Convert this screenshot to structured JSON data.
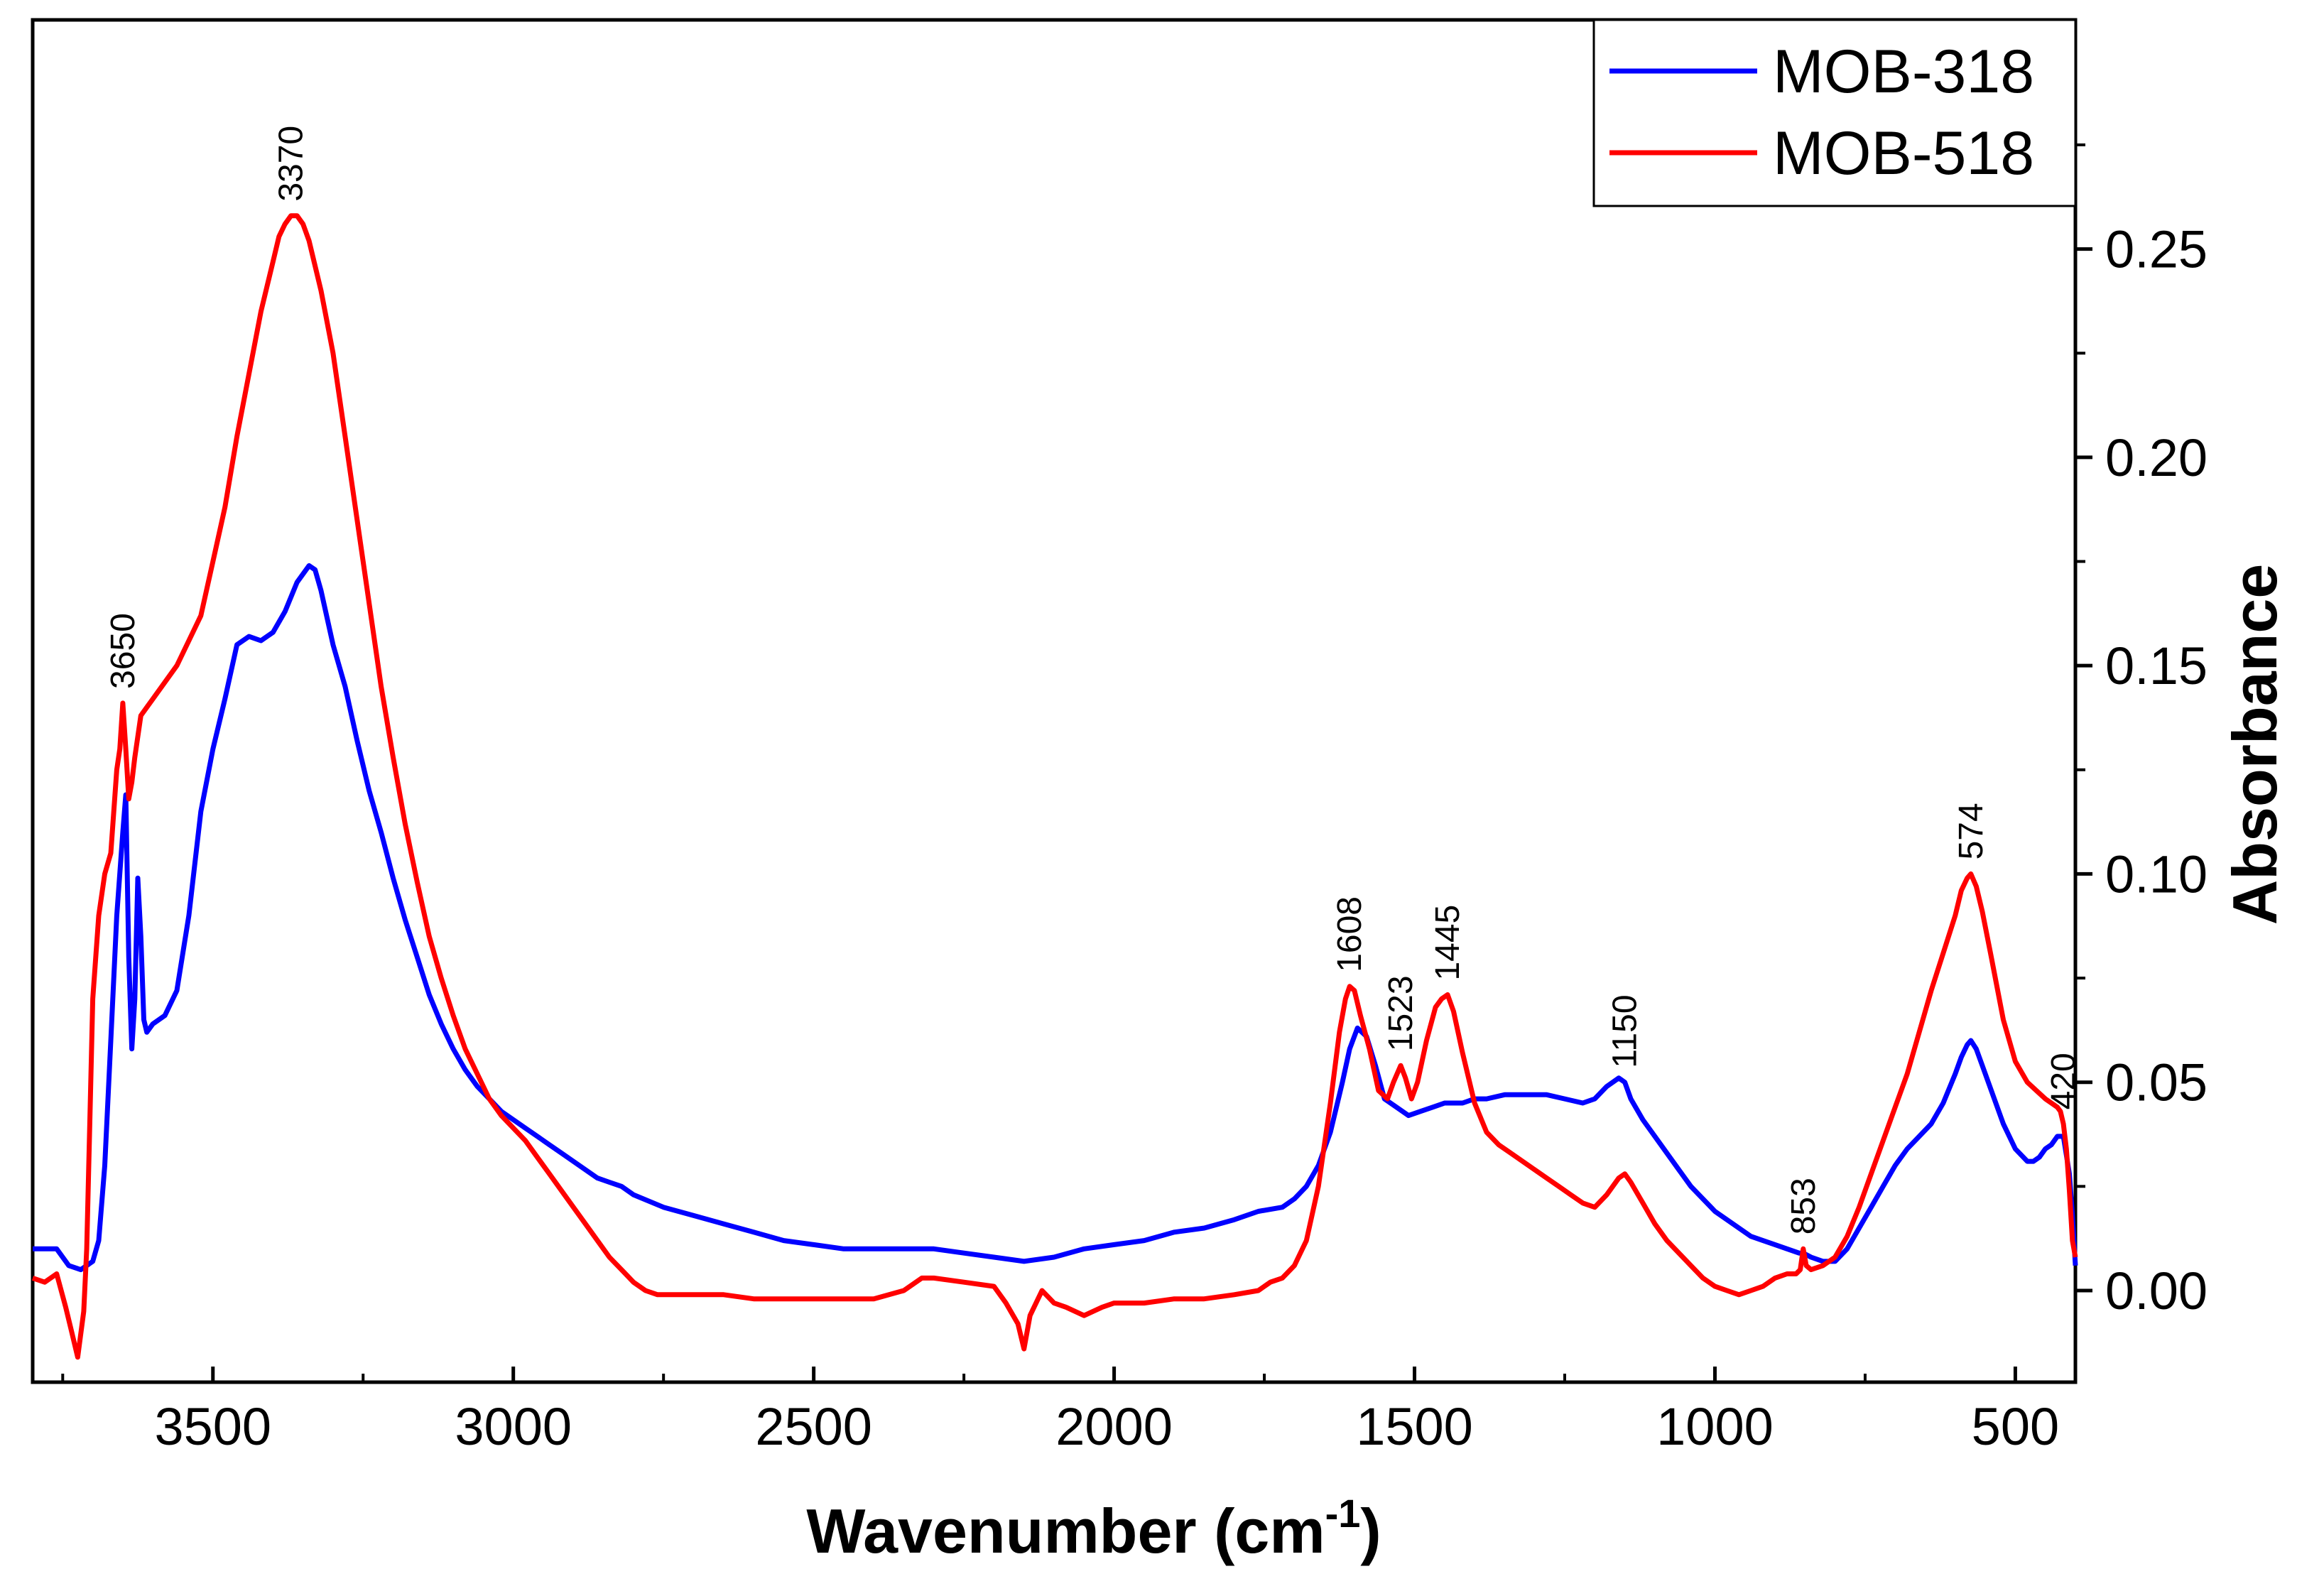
{
  "chart_data": {
    "type": "line",
    "title": "",
    "xlabel": "Wavenumber (cm",
    "xlabel_sup": "-1",
    "xlabel_suffix": ")",
    "ylabel": "Absorbance",
    "xlim": [
      3800,
      400
    ],
    "ylim": [
      -0.022,
      0.305
    ],
    "x_ticks": [
      3500,
      3000,
      2500,
      2000,
      1500,
      1000,
      500
    ],
    "x_tick_labels": [
      "3500",
      "3000",
      "2500",
      "2000",
      "1500",
      "1000",
      "500"
    ],
    "y_ticks": [
      0.0,
      0.05,
      0.1,
      0.15,
      0.2,
      0.25
    ],
    "y_tick_labels": [
      "0.00",
      "0.05",
      "0.10",
      "0.15",
      "0.20",
      "0.25"
    ],
    "y_axis_side": "right",
    "grid": false,
    "legend_position": "top-right",
    "series": [
      {
        "name": "MOB-318",
        "color": "#0000ff",
        "x": [
          3800,
          3760,
          3740,
          3720,
          3700,
          3690,
          3680,
          3670,
          3660,
          3650,
          3645,
          3640,
          3635,
          3630,
          3625,
          3620,
          3615,
          3610,
          3600,
          3580,
          3560,
          3540,
          3520,
          3500,
          3480,
          3460,
          3440,
          3420,
          3400,
          3380,
          3360,
          3340,
          3330,
          3320,
          3300,
          3280,
          3260,
          3240,
          3220,
          3200,
          3180,
          3160,
          3140,
          3120,
          3100,
          3080,
          3060,
          3040,
          3020,
          3000,
          2980,
          2960,
          2940,
          2920,
          2900,
          2880,
          2860,
          2840,
          2820,
          2800,
          2750,
          2700,
          2650,
          2600,
          2550,
          2500,
          2450,
          2400,
          2350,
          2300,
          2250,
          2200,
          2150,
          2100,
          2050,
          2000,
          1950,
          1900,
          1850,
          1800,
          1760,
          1720,
          1700,
          1680,
          1660,
          1640,
          1620,
          1608,
          1595,
          1580,
          1565,
          1550,
          1530,
          1510,
          1490,
          1470,
          1450,
          1420,
          1400,
          1380,
          1350,
          1320,
          1300,
          1280,
          1250,
          1220,
          1200,
          1180,
          1160,
          1150,
          1140,
          1120,
          1100,
          1080,
          1060,
          1040,
          1020,
          1000,
          980,
          960,
          940,
          920,
          900,
          880,
          860,
          853,
          840,
          820,
          800,
          780,
          760,
          740,
          720,
          700,
          680,
          660,
          640,
          620,
          600,
          590,
          580,
          574,
          565,
          555,
          540,
          520,
          500,
          480,
          470,
          460,
          450,
          440,
          430,
          420,
          410,
          405,
          400
        ],
        "y": [
          0.01,
          0.01,
          0.006,
          0.005,
          0.007,
          0.012,
          0.03,
          0.06,
          0.09,
          0.11,
          0.119,
          0.08,
          0.058,
          0.07,
          0.099,
          0.085,
          0.065,
          0.062,
          0.064,
          0.066,
          0.072,
          0.09,
          0.115,
          0.13,
          0.142,
          0.155,
          0.157,
          0.156,
          0.158,
          0.163,
          0.17,
          0.174,
          0.173,
          0.168,
          0.155,
          0.145,
          0.132,
          0.12,
          0.11,
          0.099,
          0.089,
          0.08,
          0.071,
          0.064,
          0.058,
          0.053,
          0.049,
          0.046,
          0.043,
          0.041,
          0.039,
          0.037,
          0.035,
          0.033,
          0.031,
          0.029,
          0.027,
          0.026,
          0.025,
          0.023,
          0.02,
          0.018,
          0.016,
          0.014,
          0.012,
          0.011,
          0.01,
          0.01,
          0.01,
          0.01,
          0.009,
          0.008,
          0.007,
          0.008,
          0.01,
          0.011,
          0.012,
          0.014,
          0.015,
          0.017,
          0.019,
          0.02,
          0.022,
          0.025,
          0.03,
          0.038,
          0.05,
          0.058,
          0.063,
          0.061,
          0.054,
          0.046,
          0.044,
          0.042,
          0.043,
          0.044,
          0.045,
          0.045,
          0.046,
          0.046,
          0.047,
          0.047,
          0.047,
          0.047,
          0.046,
          0.045,
          0.046,
          0.049,
          0.051,
          0.05,
          0.046,
          0.041,
          0.037,
          0.033,
          0.029,
          0.025,
          0.022,
          0.019,
          0.017,
          0.015,
          0.013,
          0.012,
          0.011,
          0.01,
          0.009,
          0.009,
          0.008,
          0.007,
          0.007,
          0.01,
          0.015,
          0.02,
          0.025,
          0.03,
          0.034,
          0.037,
          0.04,
          0.045,
          0.052,
          0.056,
          0.059,
          0.06,
          0.058,
          0.054,
          0.048,
          0.04,
          0.034,
          0.031,
          0.031,
          0.032,
          0.034,
          0.035,
          0.037,
          0.037,
          0.028,
          0.018,
          0.006
        ]
      },
      {
        "name": "MOB-518",
        "color": "#ff0000",
        "x": [
          3800,
          3780,
          3760,
          3745,
          3735,
          3725,
          3715,
          3710,
          3705,
          3700,
          3690,
          3680,
          3670,
          3660,
          3655,
          3650,
          3645,
          3640,
          3635,
          3630,
          3620,
          3610,
          3600,
          3580,
          3560,
          3540,
          3520,
          3500,
          3480,
          3460,
          3440,
          3420,
          3400,
          3390,
          3380,
          3370,
          3360,
          3350,
          3340,
          3320,
          3300,
          3280,
          3260,
          3240,
          3220,
          3200,
          3180,
          3160,
          3140,
          3120,
          3100,
          3080,
          3060,
          3040,
          3020,
          3000,
          2980,
          2960,
          2940,
          2920,
          2900,
          2880,
          2860,
          2840,
          2820,
          2800,
          2780,
          2760,
          2740,
          2700,
          2650,
          2600,
          2550,
          2500,
          2450,
          2400,
          2350,
          2320,
          2300,
          2250,
          2200,
          2180,
          2160,
          2150,
          2140,
          2120,
          2100,
          2080,
          2050,
          2020,
          2000,
          1950,
          1900,
          1850,
          1800,
          1760,
          1740,
          1720,
          1700,
          1680,
          1660,
          1640,
          1625,
          1615,
          1608,
          1600,
          1590,
          1575,
          1560,
          1545,
          1535,
          1523,
          1515,
          1505,
          1495,
          1480,
          1465,
          1455,
          1445,
          1435,
          1420,
          1400,
          1380,
          1360,
          1340,
          1320,
          1300,
          1280,
          1260,
          1240,
          1220,
          1200,
          1180,
          1160,
          1150,
          1140,
          1120,
          1100,
          1080,
          1060,
          1040,
          1020,
          1000,
          980,
          960,
          940,
          920,
          900,
          880,
          865,
          858,
          853,
          848,
          840,
          820,
          800,
          780,
          760,
          740,
          720,
          700,
          680,
          660,
          640,
          620,
          600,
          590,
          580,
          574,
          565,
          555,
          540,
          520,
          500,
          480,
          465,
          450,
          440,
          430,
          425,
          420,
          415,
          410,
          405,
          400
        ],
        "y": [
          0.003,
          0.002,
          0.004,
          -0.004,
          -0.01,
          -0.016,
          -0.005,
          0.01,
          0.04,
          0.07,
          0.09,
          0.1,
          0.105,
          0.125,
          0.13,
          0.141,
          0.13,
          0.118,
          0.122,
          0.128,
          0.138,
          0.14,
          0.142,
          0.146,
          0.15,
          0.156,
          0.162,
          0.175,
          0.188,
          0.205,
          0.22,
          0.235,
          0.247,
          0.253,
          0.256,
          0.258,
          0.258,
          0.256,
          0.252,
          0.24,
          0.225,
          0.205,
          0.185,
          0.165,
          0.145,
          0.128,
          0.112,
          0.098,
          0.085,
          0.075,
          0.066,
          0.058,
          0.052,
          0.046,
          0.042,
          0.039,
          0.036,
          0.032,
          0.028,
          0.024,
          0.02,
          0.016,
          0.012,
          0.008,
          0.005,
          0.002,
          0.0,
          -0.001,
          -0.001,
          -0.001,
          -0.001,
          -0.002,
          -0.002,
          -0.002,
          -0.002,
          -0.002,
          0.0,
          0.003,
          0.003,
          0.002,
          0.001,
          -0.003,
          -0.008,
          -0.014,
          -0.006,
          0.0,
          -0.003,
          -0.004,
          -0.006,
          -0.004,
          -0.003,
          -0.003,
          -0.002,
          -0.002,
          -0.001,
          0.0,
          0.002,
          0.003,
          0.006,
          0.012,
          0.025,
          0.045,
          0.062,
          0.07,
          0.073,
          0.072,
          0.066,
          0.058,
          0.048,
          0.046,
          0.05,
          0.054,
          0.051,
          0.046,
          0.05,
          0.06,
          0.068,
          0.07,
          0.071,
          0.067,
          0.057,
          0.045,
          0.038,
          0.035,
          0.033,
          0.031,
          0.029,
          0.027,
          0.025,
          0.023,
          0.021,
          0.02,
          0.023,
          0.027,
          0.028,
          0.026,
          0.021,
          0.016,
          0.012,
          0.009,
          0.006,
          0.003,
          0.001,
          0.0,
          -0.001,
          0.0,
          0.001,
          0.003,
          0.004,
          0.004,
          0.005,
          0.01,
          0.006,
          0.005,
          0.006,
          0.008,
          0.013,
          0.02,
          0.028,
          0.036,
          0.044,
          0.052,
          0.062,
          0.072,
          0.081,
          0.09,
          0.096,
          0.099,
          0.1,
          0.097,
          0.091,
          0.08,
          0.065,
          0.055,
          0.05,
          0.048,
          0.046,
          0.045,
          0.044,
          0.043,
          0.04,
          0.034,
          0.024,
          0.012,
          0.008
        ]
      }
    ],
    "annotations": [
      {
        "text": "3370",
        "x": 3370,
        "series": "MOB-518"
      },
      {
        "text": "3650",
        "x": 3650,
        "series": "MOB-518"
      },
      {
        "text": "1608",
        "x": 1608,
        "series": "MOB-518"
      },
      {
        "text": "1523",
        "x": 1523,
        "series": "MOB-518"
      },
      {
        "text": "1445",
        "x": 1445,
        "series": "MOB-518"
      },
      {
        "text": "1150",
        "x": 1150,
        "series": "MOB-318"
      },
      {
        "text": "853",
        "x": 853,
        "series": "MOB-518"
      },
      {
        "text": "574",
        "x": 574,
        "series": "MOB-518"
      },
      {
        "text": "420",
        "x": 420,
        "series": "MOB-518"
      }
    ]
  }
}
